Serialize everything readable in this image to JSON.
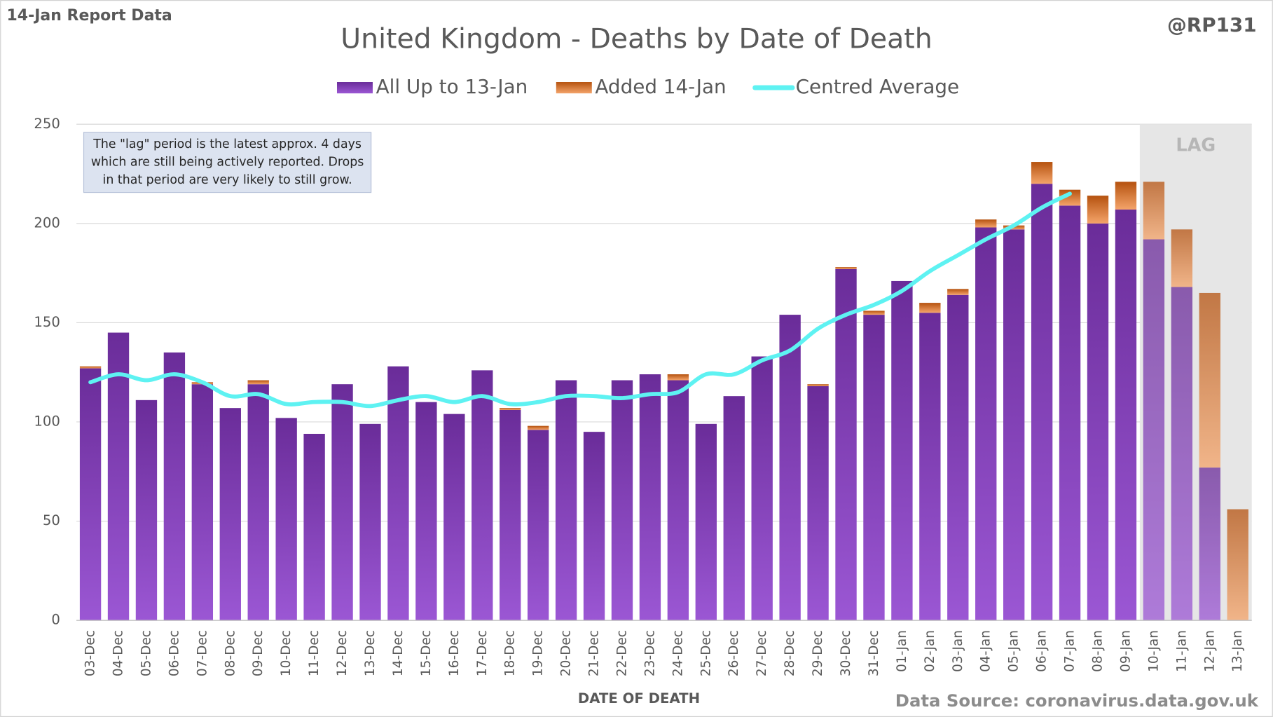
{
  "chart_data": {
    "type": "bar",
    "stacked": true,
    "corner_left": "14-Jan Report Data",
    "corner_right": "@RP131",
    "title": "United Kingdom - Deaths by Date of Death",
    "x_label": "DATE OF DEATH",
    "source": "Data Source: coronavirus.data.gov.uk",
    "annotation_lines": [
      "The \"lag\" period is the latest approx. 4 days",
      "which are still being actively reported.  Drops",
      "in that period are very likely to still grow."
    ],
    "shaded_label": "LAG",
    "shaded_from": "10-Jan",
    "categories": [
      "03-Dec",
      "04-Dec",
      "05-Dec",
      "06-Dec",
      "07-Dec",
      "08-Dec",
      "09-Dec",
      "10-Dec",
      "11-Dec",
      "12-Dec",
      "13-Dec",
      "14-Dec",
      "15-Dec",
      "16-Dec",
      "17-Dec",
      "18-Dec",
      "19-Dec",
      "20-Dec",
      "21-Dec",
      "22-Dec",
      "23-Dec",
      "24-Dec",
      "25-Dec",
      "26-Dec",
      "27-Dec",
      "28-Dec",
      "29-Dec",
      "30-Dec",
      "31-Dec",
      "01-Jan",
      "02-Jan",
      "03-Jan",
      "04-Jan",
      "05-Jan",
      "06-Jan",
      "07-Jan",
      "08-Jan",
      "09-Jan",
      "10-Jan",
      "11-Jan",
      "12-Jan",
      "13-Jan"
    ],
    "series": [
      {
        "name": "All Up to 13-Jan",
        "color": "#7030a0",
        "values": [
          127,
          145,
          111,
          135,
          119,
          107,
          119,
          102,
          94,
          119,
          99,
          128,
          110,
          104,
          126,
          106,
          96,
          121,
          95,
          121,
          124,
          121,
          99,
          113,
          133,
          154,
          118,
          177,
          154,
          171,
          155,
          164,
          198,
          197,
          220,
          209,
          200,
          207,
          192,
          168,
          77,
          0
        ]
      },
      {
        "name": "Added 14-Jan",
        "color": "#c55a11",
        "values": [
          1,
          0,
          0,
          0,
          1,
          0,
          2,
          0,
          0,
          0,
          0,
          0,
          0,
          0,
          0,
          1,
          2,
          0,
          0,
          0,
          0,
          3,
          0,
          0,
          0,
          0,
          1,
          1,
          2,
          0,
          5,
          3,
          4,
          2,
          11,
          8,
          14,
          14,
          29,
          29,
          88,
          56
        ]
      },
      {
        "name": "Centred Average",
        "type": "line",
        "color": "#5ef2f2",
        "values": [
          120,
          124,
          121,
          124,
          120,
          113,
          114,
          109,
          110,
          110,
          108,
          111,
          113,
          110,
          113,
          109,
          110,
          113,
          113,
          112,
          114,
          115,
          124,
          124,
          131,
          136,
          147,
          154,
          159,
          166,
          176,
          184,
          192,
          199,
          208,
          215,
          null,
          null,
          null,
          null,
          null,
          null
        ]
      }
    ],
    "ylim": [
      0,
      250
    ],
    "yticks": [
      0,
      50,
      100,
      150,
      200,
      250
    ],
    "grid": true,
    "legend": "top"
  }
}
